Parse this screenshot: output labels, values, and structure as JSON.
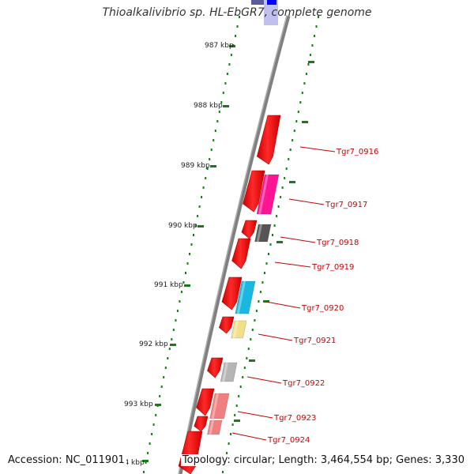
{
  "title": "Thioalkalivibrio sp. HL-EbGR7, complete genome",
  "footer": {
    "accession": "Accession: NC_011901",
    "summary": "Topology: circular; Length: 3,464,554 bp; Genes: 3,330"
  },
  "ticks": [
    {
      "label": "987 kbp"
    },
    {
      "label": "988 kbp"
    },
    {
      "label": "989 kbp"
    },
    {
      "label": "990 kbp"
    },
    {
      "label": "991 kbp"
    },
    {
      "label": "992 kbp"
    },
    {
      "label": "993 kbp"
    },
    {
      "label": "994 kbp"
    }
  ],
  "genes": [
    {
      "label": "Tgr7_0916",
      "color": "#ff0000"
    },
    {
      "label": "Tgr7_0917",
      "color": "#ff1493"
    },
    {
      "label": "Tgr7_0918",
      "color": "#555555"
    },
    {
      "label": "Tgr7_0919",
      "color": "#ff0000"
    },
    {
      "label": "Tgr7_0920",
      "color": "#1ab8e0"
    },
    {
      "label": "Tgr7_0921",
      "color": "#f0e08a"
    },
    {
      "label": "Tgr7_0922",
      "color": "#b5b5b5"
    },
    {
      "label": "Tgr7_0923",
      "color": "#f08080"
    },
    {
      "label": "Tgr7_0924",
      "color": "#f08080"
    }
  ],
  "colors": {
    "backbone": "#808080",
    "dots": "#1a7a1a",
    "label": "#cc0000",
    "top_block_dark": "#5a5aa0",
    "top_block_blue": "#0000ff"
  }
}
